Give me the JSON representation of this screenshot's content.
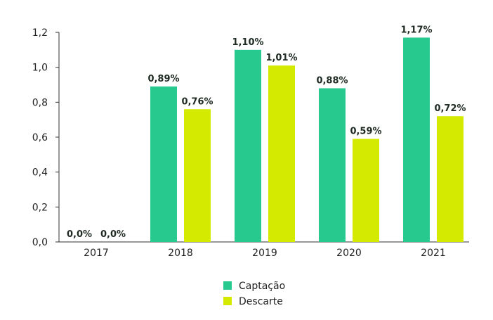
{
  "chart_data": {
    "type": "bar",
    "title": "",
    "xlabel": "",
    "ylabel": "",
    "categories": [
      "2017",
      "2018",
      "2019",
      "2020",
      "2021"
    ],
    "ylim": [
      0,
      1.2
    ],
    "yticks": [
      "0,0",
      "0,2",
      "0,4",
      "0,6",
      "0,8",
      "1,0",
      "1,2"
    ],
    "ytick_values": [
      0,
      0.2,
      0.4,
      0.6,
      0.8,
      1.0,
      1.2
    ],
    "grid": false,
    "legend_position": "bottom-center",
    "series": [
      {
        "name": "Captação",
        "color": "#28c98f",
        "values": [
          0.0,
          0.89,
          1.1,
          0.88,
          1.17
        ],
        "labels": [
          "0,0%",
          "0,89%",
          "1,10%",
          "0,88%",
          "1,17%"
        ]
      },
      {
        "name": "Descarte",
        "color": "#d4ea00",
        "values": [
          0.0,
          0.76,
          1.01,
          0.59,
          0.72
        ],
        "labels": [
          "0,0%",
          "0,76%",
          "1,01%",
          "0,59%",
          "0,72%"
        ]
      }
    ]
  }
}
